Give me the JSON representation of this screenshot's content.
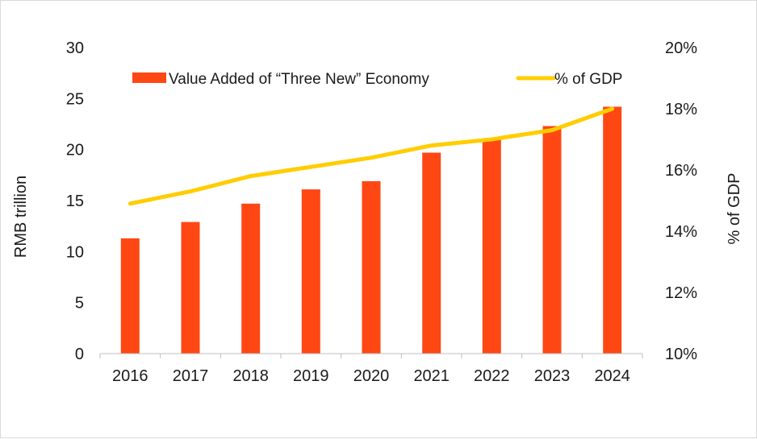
{
  "chart_data": {
    "type": "bar",
    "categories": [
      "2016",
      "2017",
      "2018",
      "2019",
      "2020",
      "2021",
      "2022",
      "2023",
      "2024"
    ],
    "series": [
      {
        "name": "Value Added of “Three New” Economy",
        "type": "bar",
        "axis": "left",
        "color": "#ff4714",
        "values": [
          11.3,
          12.9,
          14.7,
          16.1,
          16.9,
          19.7,
          21.0,
          22.3,
          24.2
        ]
      },
      {
        "name": "% of GDP",
        "type": "line",
        "axis": "right",
        "color": "#ffcd00",
        "values": [
          14.9,
          15.3,
          15.8,
          16.1,
          16.4,
          16.8,
          17.0,
          17.3,
          18.0
        ]
      }
    ],
    "ylabel": "RMB trillion",
    "ylim": [
      0,
      30
    ],
    "yticks": [
      "0",
      "5",
      "10",
      "15",
      "20",
      "25",
      "30"
    ],
    "y2label": "% of GDP",
    "y2lim": [
      10,
      20
    ],
    "y2ticks": [
      "10%",
      "12%",
      "14%",
      "16%",
      "18%",
      "20%"
    ],
    "grid": false,
    "legend_position": "top"
  }
}
